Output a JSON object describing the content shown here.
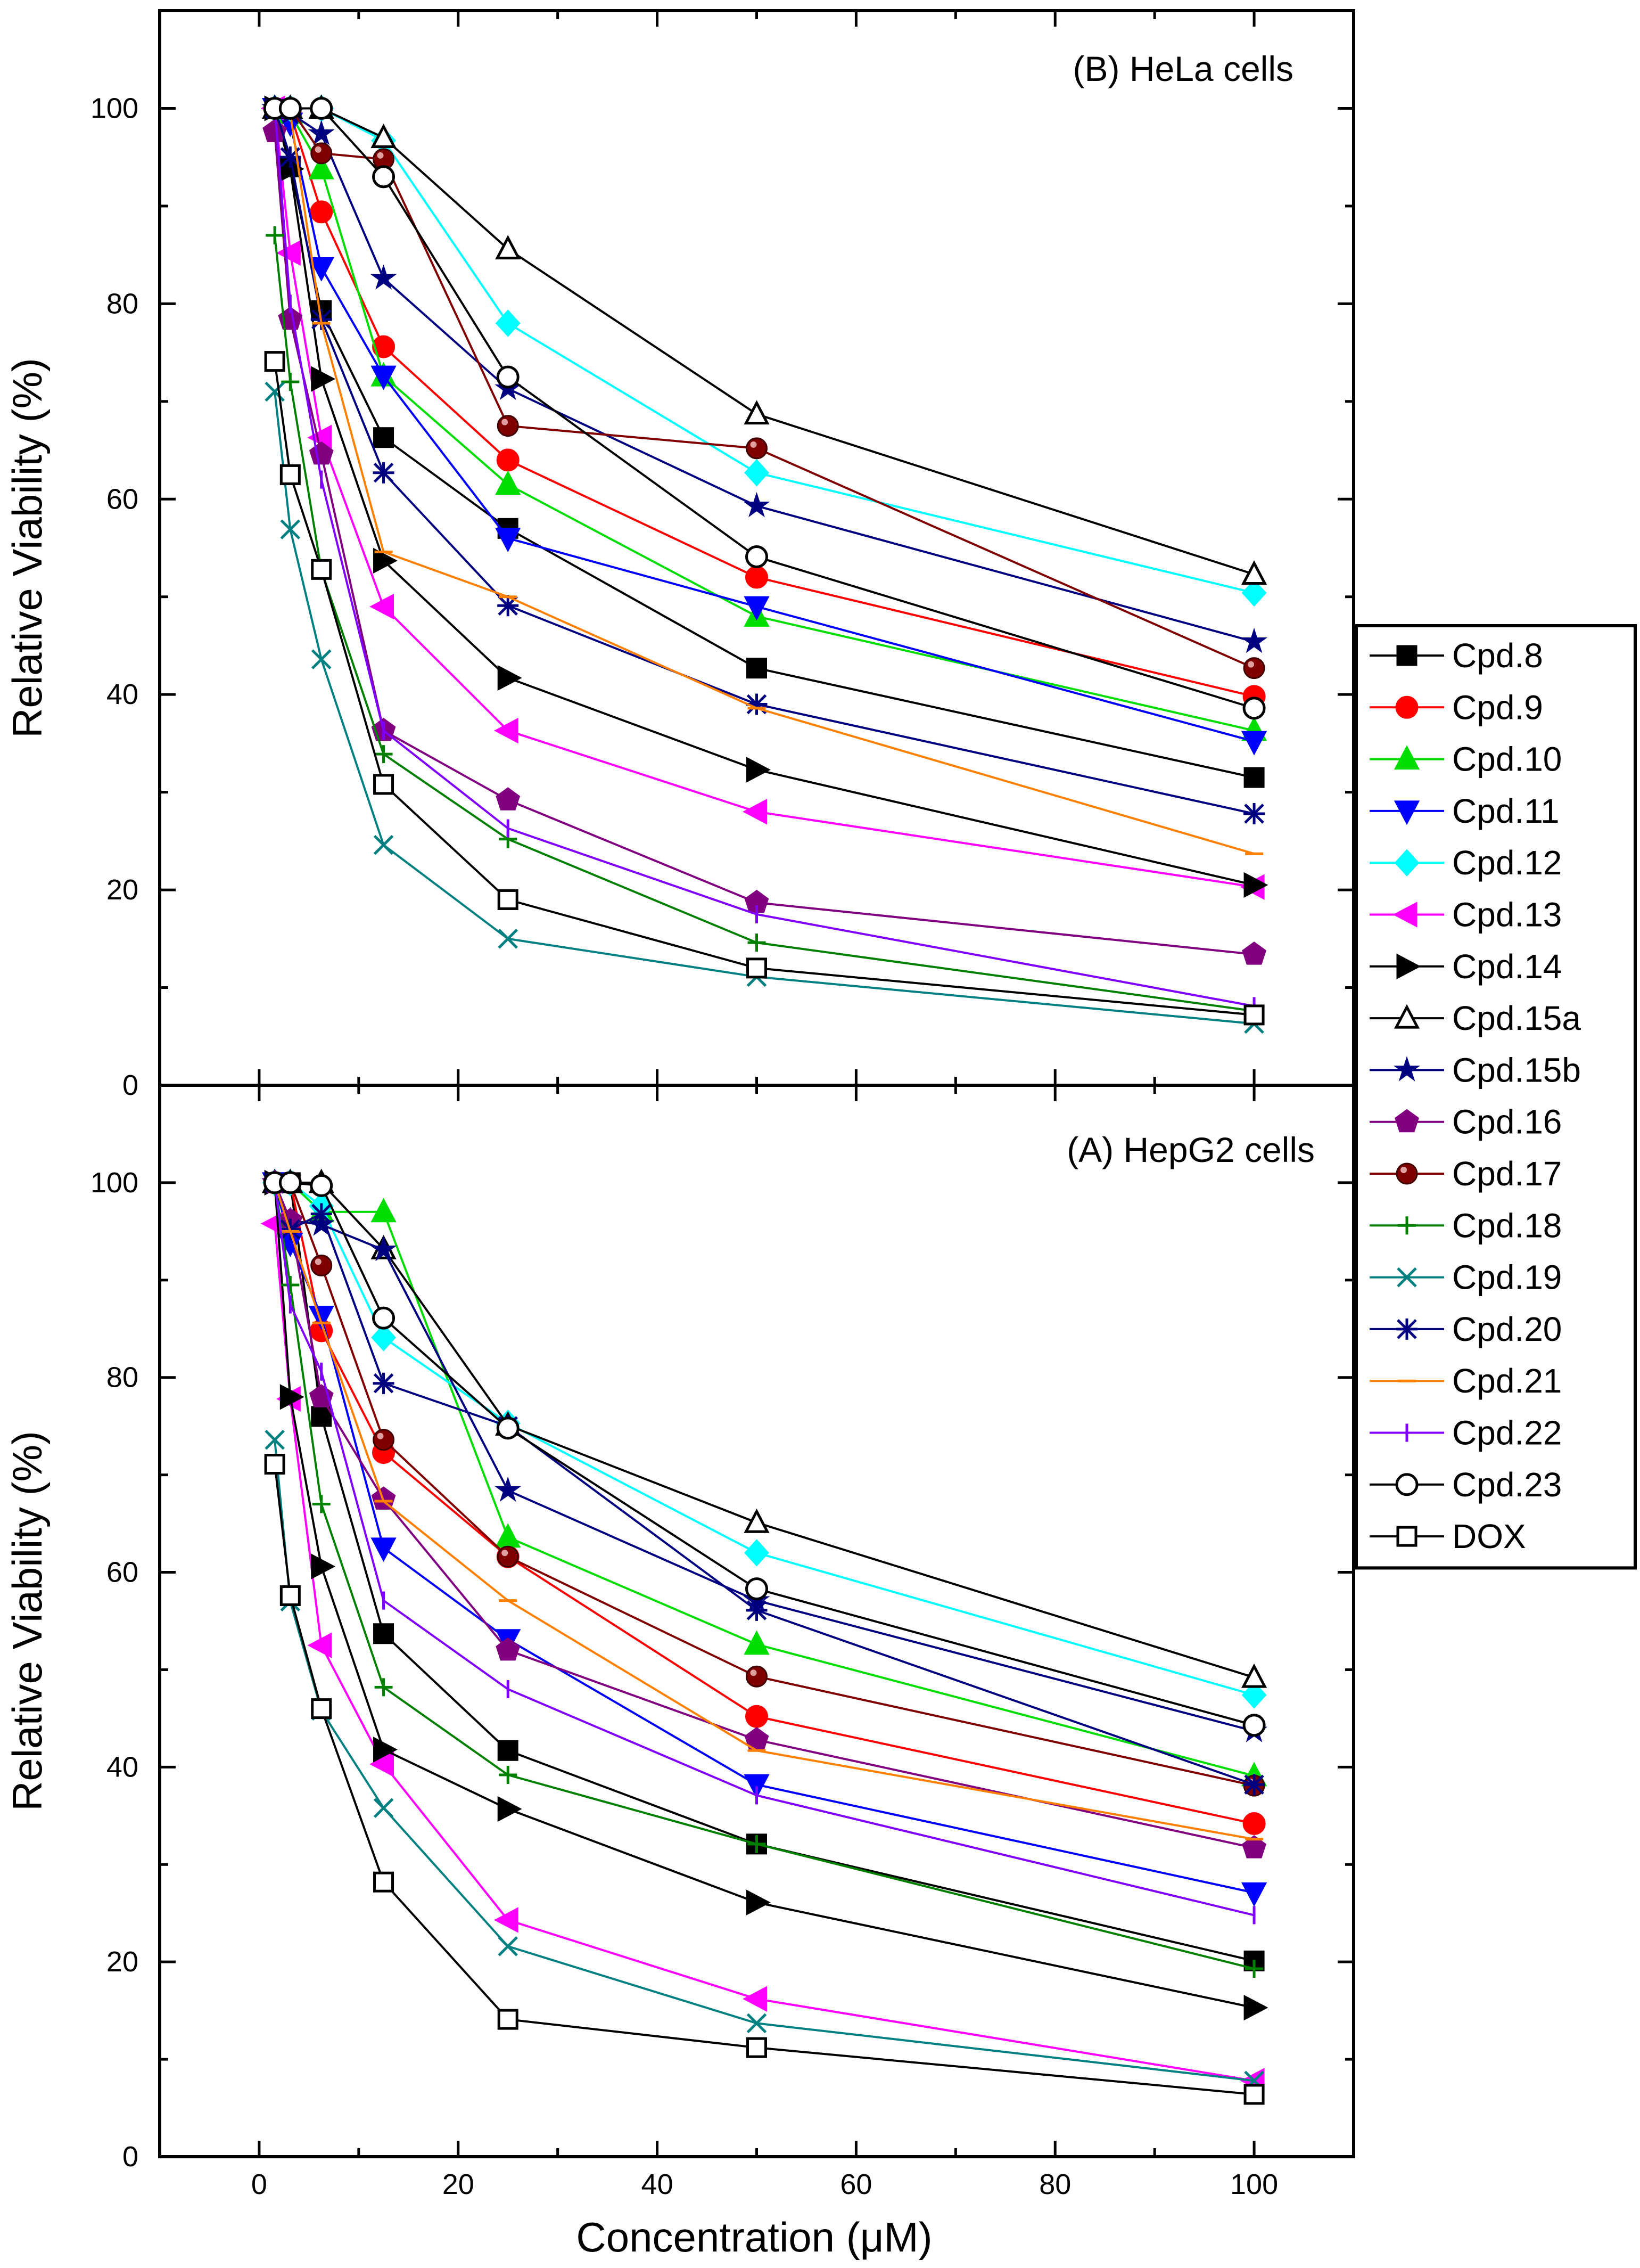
{
  "chart_data": {
    "type": "line",
    "xlabel": "Concentration (μM)",
    "xlim": [
      -10,
      110
    ],
    "xticks": [
      "0",
      "20",
      "40",
      "60",
      "80",
      "100"
    ],
    "x": [
      1.5625,
      3.125,
      6.25,
      12.5,
      25,
      50,
      100
    ],
    "legend_position": "right",
    "styles": [
      {
        "name": "Cpd.8",
        "color": "#000000",
        "marker": "square",
        "filled": true
      },
      {
        "name": "Cpd.9",
        "color": "#ff0000",
        "marker": "circle",
        "filled": true
      },
      {
        "name": "Cpd.10",
        "color": "#00dd00",
        "marker": "triangle-up",
        "filled": true
      },
      {
        "name": "Cpd.11",
        "color": "#0000ff",
        "marker": "triangle-down",
        "filled": true
      },
      {
        "name": "Cpd.12",
        "color": "#00ffff",
        "marker": "diamond",
        "filled": true
      },
      {
        "name": "Cpd.13",
        "color": "#ff00ff",
        "marker": "triangle-left",
        "filled": true
      },
      {
        "name": "Cpd.14",
        "color": "#000000",
        "marker": "triangle-right",
        "filled": true
      },
      {
        "name": "Cpd.15a",
        "color": "#000000",
        "marker": "triangle-up",
        "filled": false
      },
      {
        "name": "Cpd.15b",
        "color": "#000080",
        "marker": "star",
        "filled": true
      },
      {
        "name": "Cpd.16",
        "color": "#800080",
        "marker": "pentagon",
        "filled": true
      },
      {
        "name": "Cpd.17",
        "color": "#800000",
        "marker": "sphere",
        "filled": true
      },
      {
        "name": "Cpd.18",
        "color": "#008000",
        "marker": "plus",
        "filled": false
      },
      {
        "name": "Cpd.19",
        "color": "#008080",
        "marker": "cross",
        "filled": false
      },
      {
        "name": "Cpd.20",
        "color": "#000080",
        "marker": "asterisk",
        "filled": false
      },
      {
        "name": "Cpd.21",
        "color": "#ff8000",
        "marker": "hbar",
        "filled": false
      },
      {
        "name": "Cpd.22",
        "color": "#8000ff",
        "marker": "vbar",
        "filled": false
      },
      {
        "name": "Cpd.23",
        "color": "#000000",
        "marker": "circle",
        "filled": false
      },
      {
        "name": "DOX",
        "color": "#000000",
        "marker": "square",
        "filled": false
      }
    ],
    "panels": [
      {
        "title": "(B) HeLa cells",
        "ylabel": "Relative Viability (%)",
        "ylim": [
          0,
          110
        ],
        "yticks": [
          "0",
          "20",
          "40",
          "60",
          "80",
          "100"
        ],
        "series": [
          {
            "name": "Cpd.8",
            "values": [
              100,
              94,
              79.3,
              66.3,
              57,
              42.7,
              31.5
            ]
          },
          {
            "name": "Cpd.9",
            "values": [
              100,
              99.5,
              89.4,
              75.6,
              64,
              52,
              39.8
            ]
          },
          {
            "name": "Cpd.10",
            "values": [
              100,
              99.5,
              93.8,
              72.6,
              61.5,
              48,
              36.3
            ]
          },
          {
            "name": "Cpd.11",
            "values": [
              100,
              98.5,
              83.7,
              72.6,
              56,
              49,
              35.2
            ]
          },
          {
            "name": "Cpd.12",
            "values": [
              100,
              100,
              100,
              96.7,
              78,
              62.7,
              50.4
            ]
          },
          {
            "name": "Cpd.13",
            "values": [
              100,
              85.2,
              66.3,
              49,
              36.3,
              28,
              20.3
            ]
          },
          {
            "name": "Cpd.14",
            "values": [
              100,
              93.8,
              72.3,
              53.7,
              41.7,
              32.3,
              20.5
            ]
          },
          {
            "name": "Cpd.15a",
            "values": [
              100,
              100,
              100,
              97,
              85.6,
              68.7,
              52.3
            ]
          },
          {
            "name": "Cpd.15b",
            "values": [
              100,
              99.5,
              97.4,
              82.6,
              71.3,
              59.3,
              45.4
            ]
          },
          {
            "name": "Cpd.16",
            "values": [
              97.6,
              78.4,
              64.6,
              36.3,
              29.2,
              18.7,
              13.4
            ]
          },
          {
            "name": "Cpd.17",
            "values": [
              100,
              100,
              95.4,
              94.8,
              67.5,
              65.2,
              42.7
            ]
          },
          {
            "name": "Cpd.18",
            "values": [
              87,
              72,
              52.7,
              33.9,
              25.2,
              14.6,
              7.6
            ]
          },
          {
            "name": "Cpd.19",
            "values": [
              71,
              56.9,
              43.6,
              24.6,
              15,
              11.1,
              6.3
            ]
          },
          {
            "name": "Cpd.20",
            "values": [
              100,
              95,
              78.4,
              62.7,
              49.1,
              39,
              27.8
            ]
          },
          {
            "name": "Cpd.21",
            "values": [
              100,
              99.5,
              78,
              54.6,
              50,
              38.6,
              23.7
            ]
          },
          {
            "name": "Cpd.22",
            "values": [
              100,
              80,
              62,
              36.3,
              26.3,
              17.5,
              8.1
            ]
          },
          {
            "name": "Cpd.23",
            "values": [
              100,
              100,
              100,
              93,
              72.5,
              54.1,
              38.6
            ]
          },
          {
            "name": "DOX",
            "values": [
              74.1,
              62.5,
              52.8,
              30.8,
              19,
              12,
              7.2
            ]
          }
        ]
      },
      {
        "title": "(A) HepG2 cells",
        "ylabel": "Relative Viability (%)",
        "ylim": [
          0,
          110
        ],
        "yticks": [
          "0",
          "20",
          "40",
          "60",
          "80",
          "100"
        ],
        "series": [
          {
            "name": "Cpd.8",
            "values": [
              100,
              100,
              76,
              53.7,
              41.7,
              32.1,
              20.1
            ]
          },
          {
            "name": "Cpd.9",
            "values": [
              100,
              100,
              84.8,
              72.3,
              61.6,
              45.2,
              34.2
            ]
          },
          {
            "name": "Cpd.10",
            "values": [
              100,
              100,
              97,
              97,
              63.6,
              52.6,
              39.1
            ]
          },
          {
            "name": "Cpd.11",
            "values": [
              100,
              93.8,
              86.3,
              62.5,
              53.1,
              38.2,
              27.1
            ]
          },
          {
            "name": "Cpd.12",
            "values": [
              100,
              100,
              97.6,
              84.1,
              75.3,
              62,
              47.4
            ]
          },
          {
            "name": "Cpd.13",
            "values": [
              95.8,
              77.8,
              52.5,
              40.3,
              24.3,
              16.2,
              7.8
            ]
          },
          {
            "name": "Cpd.14",
            "values": [
              100,
              78,
              60.6,
              41.8,
              35.7,
              26.1,
              15.3
            ]
          },
          {
            "name": "Cpd.15a",
            "values": [
              100,
              100,
              100,
              93.2,
              75.1,
              65.1,
              49.2
            ]
          },
          {
            "name": "Cpd.15b",
            "values": [
              100,
              96.1,
              95.7,
              93.1,
              68.4,
              57.1,
              43.7
            ]
          },
          {
            "name": "Cpd.16",
            "values": [
              100,
              96.1,
              78,
              67.5,
              52,
              42.8,
              31.7
            ]
          },
          {
            "name": "Cpd.17",
            "values": [
              100,
              100,
              91.5,
              73.6,
              61.6,
              49.3,
              38.1
            ]
          },
          {
            "name": "Cpd.18",
            "values": [
              100,
              89.5,
              67,
              48.2,
              39.2,
              32.1,
              19.3
            ]
          },
          {
            "name": "Cpd.19",
            "values": [
              73.6,
              57,
              45.8,
              35.8,
              21.6,
              13.7,
              7.8
            ]
          },
          {
            "name": "Cpd.20",
            "values": [
              100,
              95.2,
              96.8,
              79.4,
              75,
              56.1,
              38.2
            ]
          },
          {
            "name": "Cpd.21",
            "values": [
              100,
              95,
              85.6,
              67.3,
              57.1,
              41.7,
              32.6
            ]
          },
          {
            "name": "Cpd.22",
            "values": [
              100,
              87.5,
              80.6,
              57.1,
              48,
              37.1,
              24.8
            ]
          },
          {
            "name": "Cpd.23",
            "values": [
              100,
              100,
              99.7,
              86.1,
              74.8,
              58.3,
              44.3
            ]
          },
          {
            "name": "DOX",
            "values": [
              71.1,
              57.6,
              46,
              28.2,
              14.1,
              11.2,
              6.4
            ]
          }
        ]
      }
    ]
  }
}
